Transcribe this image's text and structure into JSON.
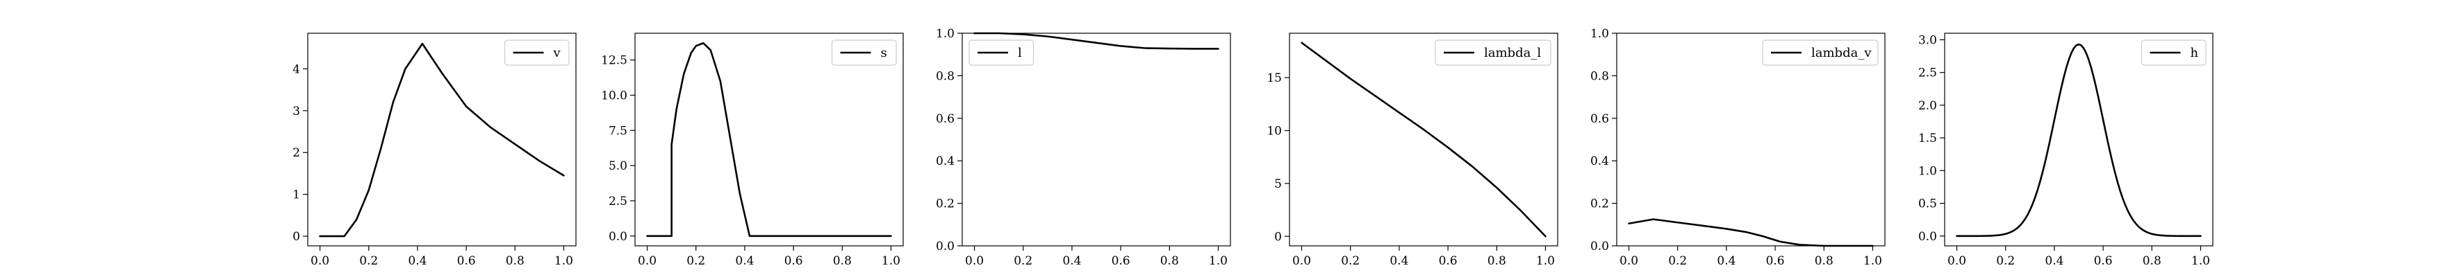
{
  "chart_data": [
    {
      "type": "line",
      "legend": "v",
      "legend_loc": "upper right",
      "color": "#000000",
      "xlim": [
        -0.05,
        1.05
      ],
      "ylim": [
        -0.23,
        4.85
      ],
      "xticks": [
        0.0,
        0.2,
        0.4,
        0.6,
        0.8,
        1.0
      ],
      "xtick_labels": [
        "0.0",
        "0.2",
        "0.4",
        "0.6",
        "0.8",
        "1.0"
      ],
      "yticks": [
        0,
        1,
        2,
        3,
        4
      ],
      "ytick_labels": [
        "0",
        "1",
        "2",
        "3",
        "4"
      ],
      "x": [
        0.0,
        0.1,
        0.15,
        0.2,
        0.25,
        0.3,
        0.35,
        0.42,
        0.5,
        0.6,
        0.7,
        0.8,
        0.9,
        1.0
      ],
      "y": [
        0.0,
        0.0,
        0.4,
        1.1,
        2.1,
        3.2,
        4.0,
        4.6,
        3.9,
        3.1,
        2.6,
        2.2,
        1.8,
        1.45
      ]
    },
    {
      "type": "line",
      "legend": "s",
      "legend_loc": "upper right",
      "color": "#000000",
      "xlim": [
        -0.05,
        1.05
      ],
      "ylim": [
        -0.7,
        14.4
      ],
      "xticks": [
        0.0,
        0.2,
        0.4,
        0.6,
        0.8,
        1.0
      ],
      "xtick_labels": [
        "0.0",
        "0.2",
        "0.4",
        "0.6",
        "0.8",
        "1.0"
      ],
      "yticks": [
        0.0,
        2.5,
        5.0,
        7.5,
        10.0,
        12.5
      ],
      "ytick_labels": [
        "0.0",
        "2.5",
        "5.0",
        "7.5",
        "10.0",
        "12.5"
      ],
      "x": [
        0.0,
        0.1,
        0.1,
        0.12,
        0.15,
        0.18,
        0.2,
        0.23,
        0.26,
        0.3,
        0.34,
        0.38,
        0.42,
        1.0
      ],
      "y": [
        0.0,
        0.0,
        6.5,
        9.0,
        11.5,
        13.0,
        13.5,
        13.7,
        13.2,
        11.0,
        7.0,
        3.0,
        0.0,
        0.0
      ]
    },
    {
      "type": "line",
      "legend": "l",
      "legend_loc": "upper left",
      "color": "#000000",
      "xlim": [
        -0.05,
        1.05
      ],
      "ylim": [
        0.0,
        1.0
      ],
      "xticks": [
        0.0,
        0.2,
        0.4,
        0.6,
        0.8,
        1.0
      ],
      "xtick_labels": [
        "0.0",
        "0.2",
        "0.4",
        "0.6",
        "0.8",
        "1.0"
      ],
      "yticks": [
        0.0,
        0.2,
        0.4,
        0.6,
        0.8,
        1.0
      ],
      "ytick_labels": [
        "0.0",
        "0.2",
        "0.4",
        "0.6",
        "0.8",
        "1.0"
      ],
      "x": [
        0.0,
        0.1,
        0.2,
        0.3,
        0.4,
        0.5,
        0.6,
        0.7,
        0.8,
        0.9,
        1.0
      ],
      "y": [
        1.0,
        1.0,
        0.995,
        0.985,
        0.97,
        0.955,
        0.94,
        0.93,
        0.928,
        0.927,
        0.927
      ]
    },
    {
      "type": "line",
      "legend": "lambda_l",
      "legend_loc": "upper right",
      "color": "#000000",
      "xlim": [
        -0.05,
        1.05
      ],
      "ylim": [
        -0.9,
        19.2
      ],
      "xticks": [
        0.0,
        0.2,
        0.4,
        0.6,
        0.8,
        1.0
      ],
      "xtick_labels": [
        "0.0",
        "0.2",
        "0.4",
        "0.6",
        "0.8",
        "1.0"
      ],
      "yticks": [
        0,
        5,
        10,
        15
      ],
      "ytick_labels": [
        "0",
        "5",
        "10",
        "15"
      ],
      "x": [
        0.0,
        0.1,
        0.2,
        0.3,
        0.4,
        0.5,
        0.6,
        0.7,
        0.8,
        0.9,
        1.0
      ],
      "y": [
        18.3,
        16.6,
        14.9,
        13.3,
        11.7,
        10.1,
        8.4,
        6.6,
        4.6,
        2.4,
        0.0
      ]
    },
    {
      "type": "line",
      "legend": "lambda_v",
      "legend_loc": "upper right",
      "color": "#000000",
      "xlim": [
        -0.05,
        1.05
      ],
      "ylim": [
        0.0,
        1.0
      ],
      "xticks": [
        0.0,
        0.2,
        0.4,
        0.6,
        0.8,
        1.0
      ],
      "xtick_labels": [
        "0.0",
        "0.2",
        "0.4",
        "0.6",
        "0.8",
        "1.0"
      ],
      "yticks": [
        0.0,
        0.2,
        0.4,
        0.6,
        0.8,
        1.0
      ],
      "ytick_labels": [
        "0.0",
        "0.2",
        "0.4",
        "0.6",
        "0.8",
        "1.0"
      ],
      "x": [
        0.0,
        0.1,
        0.2,
        0.3,
        0.4,
        0.48,
        0.55,
        0.62,
        0.7,
        0.8,
        0.9,
        1.0
      ],
      "y": [
        0.105,
        0.125,
        0.11,
        0.095,
        0.08,
        0.065,
        0.045,
        0.02,
        0.005,
        0.0,
        0.0,
        0.0
      ]
    },
    {
      "type": "line",
      "legend": "h",
      "legend_loc": "upper right",
      "color": "#000000",
      "xlim": [
        -0.05,
        1.05
      ],
      "ylim": [
        -0.15,
        3.1
      ],
      "xticks": [
        0.0,
        0.2,
        0.4,
        0.6,
        0.8,
        1.0
      ],
      "xtick_labels": [
        "0.0",
        "0.2",
        "0.4",
        "0.6",
        "0.8",
        "1.0"
      ],
      "yticks": [
        0.0,
        0.5,
        1.0,
        1.5,
        2.0,
        2.5,
        3.0
      ],
      "ytick_labels": [
        "0.0",
        "0.5",
        "1.0",
        "1.5",
        "2.0",
        "2.5",
        "3.0"
      ],
      "gaussian": {
        "amplitude": 2.93,
        "center": 0.5,
        "sigma": 0.1
      }
    }
  ]
}
